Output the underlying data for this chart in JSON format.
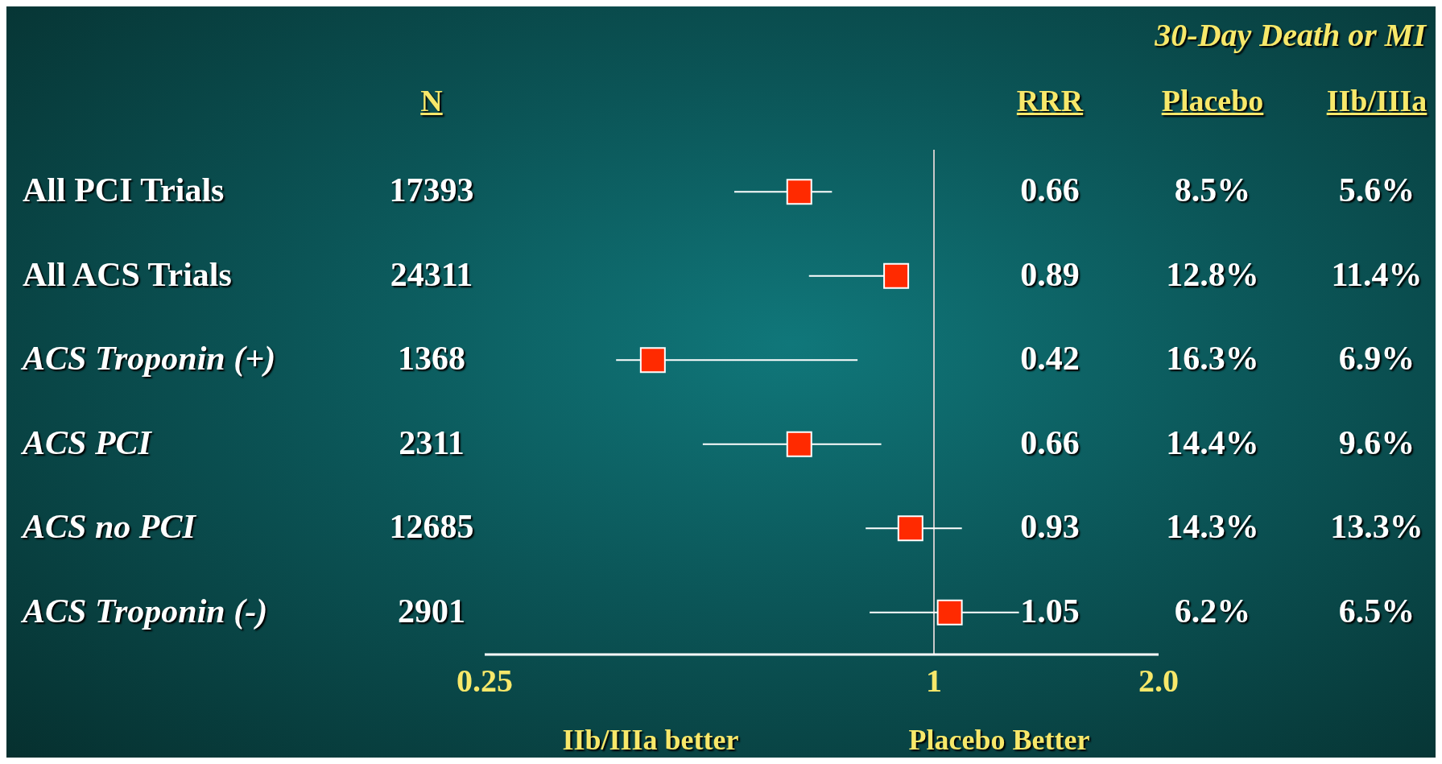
{
  "chart_data": {
    "type": "scatter",
    "orientation": "horizontal",
    "title": "30-Day Death or MI",
    "categories": [
      "All PCI Trials",
      "All ACS Trials",
      "ACS Troponin (+)",
      "ACS PCI",
      "ACS no PCI",
      "ACS Troponin (-)"
    ],
    "values": [
      0.66,
      0.89,
      0.42,
      0.66,
      0.93,
      1.05
    ],
    "errors": [
      [
        0.54,
        0.73
      ],
      [
        0.68,
        0.92
      ],
      [
        0.375,
        0.79
      ],
      [
        0.49,
        0.85
      ],
      [
        0.81,
        1.09
      ],
      [
        0.82,
        1.3
      ]
    ],
    "color": "#ff2a00",
    "marker": "square",
    "log": "x",
    "xlim": [
      0.25,
      2
    ],
    "xticks": [
      0.25,
      1,
      {
        "value": 2,
        "label": "2.0"
      }
    ],
    "ref_lines": [
      {
        "axis": "x",
        "value": 1,
        "color": "#c8c8c8"
      }
    ],
    "annotations": [
      "N",
      "RRR",
      "Placebo",
      "IIb/IIIa",
      "17393",
      "0.66",
      "8.5%",
      "5.6%",
      "24311",
      "0.89",
      "12.8%",
      "11.4%",
      "1368",
      "0.42",
      "16.3%",
      "6.9%",
      "2311",
      "0.66",
      "14.4%",
      "9.6%",
      "12685",
      "0.93",
      "14.3%",
      "13.3%",
      "2901",
      "1.05",
      "6.2%",
      "6.5%",
      "IIb/IIIa better",
      "Placebo Better"
    ]
  }
}
